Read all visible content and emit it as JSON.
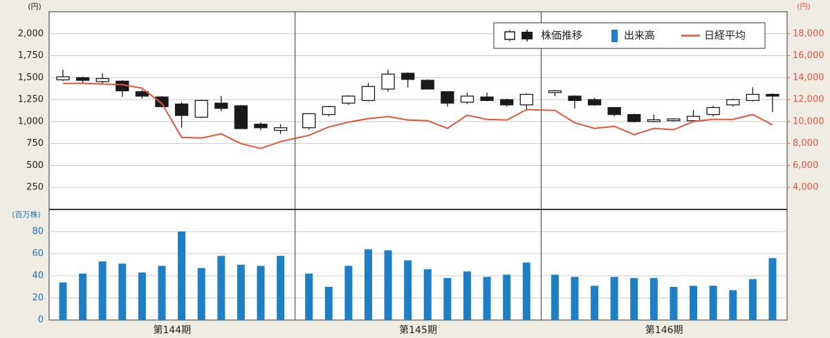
{
  "chart_data": {
    "type": "candlestick",
    "groups": [
      "第144期",
      "第145期",
      "第146期"
    ],
    "ylabel": "(円)",
    "y2label": "(円)",
    "volume_label": "(百万株)",
    "ylim": [
      0,
      2250
    ],
    "yticks": [
      250,
      500,
      750,
      {
        "value": 1000,
        "label": "1,000"
      },
      {
        "value": 1250,
        "label": "1,250"
      },
      {
        "value": 1500,
        "label": "1,500"
      },
      {
        "value": 1750,
        "label": "1,750"
      },
      {
        "value": 2000,
        "label": "2,000"
      }
    ],
    "y2lim": [
      2000,
      20000
    ],
    "y2ticks": [
      {
        "value": 4000,
        "label": "4,000"
      },
      {
        "value": 6000,
        "label": "6,000"
      },
      {
        "value": 8000,
        "label": "8,000"
      },
      {
        "value": 10000,
        "label": "10,000"
      },
      {
        "value": 12000,
        "label": "12,000"
      },
      {
        "value": 14000,
        "label": "14,000"
      },
      {
        "value": 16000,
        "label": "16,000"
      },
      {
        "value": 18000,
        "label": "18,000"
      }
    ],
    "volume_ylim": [
      0,
      100
    ],
    "volume_yticks": [
      0,
      20,
      40,
      60,
      80
    ],
    "grid": true,
    "series": [
      {
        "name": "株価推移",
        "color": "#1a1a1a",
        "open": [
          1475,
          1500,
          1455,
          1460,
          1340,
          1280,
          1200,
          1050,
          1210,
          1180,
          970,
          900,
          930,
          1080,
          1210,
          1240,
          1370,
          1550,
          1470,
          1340,
          1220,
          1280,
          1250,
          1190,
          1330,
          1290,
          1250,
          1160,
          1080,
          1000,
          1010,
          1010,
          1080,
          1190,
          1240,
          1310
        ],
        "high": [
          1590,
          1510,
          1550,
          1470,
          1360,
          1290,
          1220,
          1250,
          1290,
          1190,
          990,
          970,
          1090,
          1180,
          1300,
          1440,
          1590,
          1560,
          1480,
          1340,
          1330,
          1330,
          1260,
          1320,
          1360,
          1300,
          1270,
          1160,
          1090,
          1080,
          1040,
          1130,
          1180,
          1260,
          1390,
          1320
        ],
        "low": [
          1460,
          1430,
          1430,
          1280,
          1260,
          1160,
          930,
          1040,
          1120,
          920,
          900,
          860,
          910,
          1060,
          1190,
          1230,
          1340,
          1390,
          1370,
          1170,
          1200,
          1230,
          1170,
          1140,
          1290,
          1150,
          1180,
          1060,
          990,
          990,
          1000,
          990,
          1060,
          1170,
          1230,
          1110
        ],
        "close": [
          1510,
          1470,
          1490,
          1350,
          1290,
          1170,
          1070,
          1240,
          1150,
          920,
          930,
          930,
          1090,
          1170,
          1290,
          1400,
          1540,
          1480,
          1370,
          1210,
          1290,
          1240,
          1190,
          1310,
          1350,
          1240,
          1190,
          1080,
          1000,
          1020,
          1030,
          1060,
          1160,
          1250,
          1310,
          1290
        ]
      },
      {
        "name": "出来高",
        "color": "#1f7fc4",
        "axis": "volume",
        "values": [
          34,
          42,
          53,
          51,
          43,
          49,
          80,
          47,
          58,
          50,
          49,
          58,
          42,
          30,
          49,
          64,
          63,
          54,
          46,
          38,
          44,
          39,
          41,
          52,
          41,
          39,
          31,
          39,
          38,
          38,
          30,
          31,
          31,
          27,
          37,
          56
        ]
      },
      {
        "name": "日経平均",
        "color": "#e5533d",
        "axis": "y2",
        "values": [
          13480,
          13480,
          13420,
          13360,
          13040,
          11650,
          8560,
          8500,
          8880,
          8000,
          7550,
          8180,
          8750,
          9510,
          9950,
          10270,
          10460,
          10140,
          10080,
          9380,
          10580,
          10200,
          10140,
          11090,
          11020,
          9890,
          9380,
          9570,
          8810,
          9380,
          9260,
          10010,
          10200,
          10200,
          10640,
          9700
        ]
      }
    ]
  }
}
